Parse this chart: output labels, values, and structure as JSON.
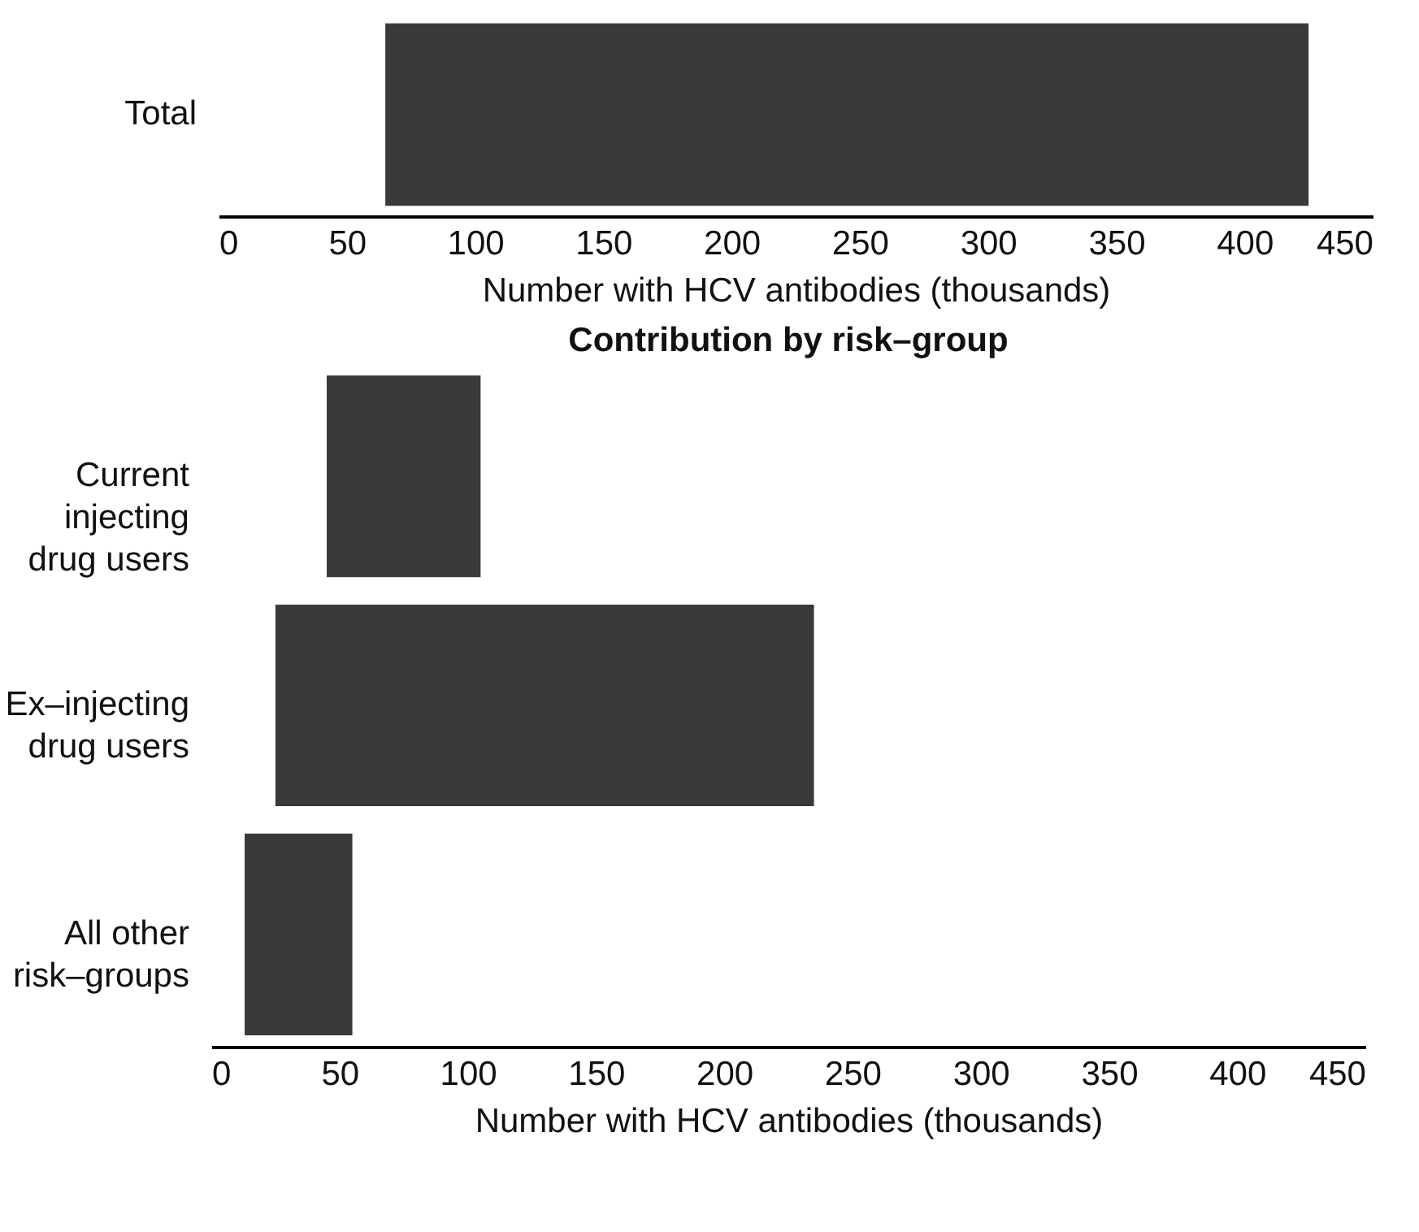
{
  "chart_data": [
    {
      "type": "bar",
      "orientation": "horizontal",
      "categories": [
        "Total"
      ],
      "xlabel": "Number with HCV antibodies (thousands)",
      "xlim": [
        0,
        450
      ],
      "xticks": [
        0,
        50,
        100,
        150,
        200,
        250,
        300,
        350,
        400,
        450
      ],
      "color": "#3a3a3a",
      "base": [
        65
      ],
      "values": [
        360
      ]
    },
    {
      "type": "bar",
      "orientation": "horizontal",
      "title": "Contribution by risk–group",
      "categories": [
        "Current\ninjecting\ndrug users",
        "Ex–injecting\ndrug users",
        "All other\nrisk–groups"
      ],
      "xlabel": "Number with HCV antibodies (thousands)",
      "xlim": [
        0,
        450
      ],
      "xticks": [
        0,
        50,
        100,
        150,
        200,
        250,
        300,
        350,
        400,
        450
      ],
      "color": "#3a3a3a",
      "base": [
        45,
        25,
        13
      ],
      "values": [
        60,
        210,
        42
      ]
    }
  ]
}
